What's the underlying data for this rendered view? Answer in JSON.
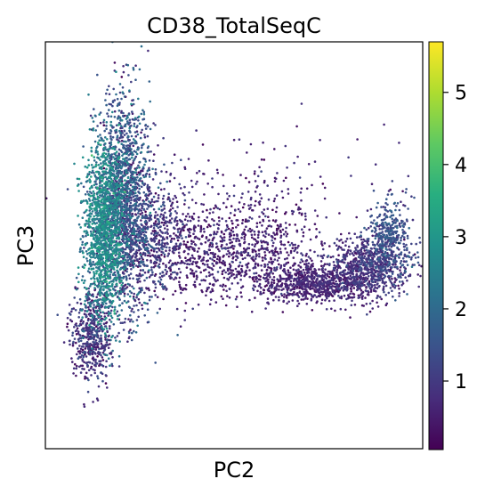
{
  "chart_data": {
    "type": "scatter",
    "title": "CD38_TotalSeqC",
    "xlabel": "PC2",
    "ylabel": "PC3",
    "x_ticks_shown": false,
    "y_ticks_shown": false,
    "grid": false,
    "colormap": "viridis",
    "colorbar": {
      "placement": "right",
      "range": [
        0.05,
        5.7
      ],
      "ticks": [
        {
          "value": 1,
          "label": "1"
        },
        {
          "value": 2,
          "label": "2"
        },
        {
          "value": 3,
          "label": "3"
        },
        {
          "value": 4,
          "label": "4"
        },
        {
          "value": 5,
          "label": "5"
        }
      ]
    },
    "xlim": [
      -10,
      105
    ],
    "ylim": [
      -28,
      80
    ],
    "clusters": [
      {
        "cx": 8,
        "cy": 30,
        "sx": 3.2,
        "sy": 12,
        "n": 1400,
        "cmean": 2.5,
        "csd": 0.45
      },
      {
        "cx": 14,
        "cy": 38,
        "sx": 4.0,
        "sy": 14,
        "n": 1500,
        "cmean": 1.4,
        "csd": 0.55
      },
      {
        "cx": 22,
        "cy": 28,
        "sx": 5.5,
        "sy": 8,
        "n": 500,
        "cmean": 1.0,
        "csd": 0.4
      },
      {
        "cx": 4,
        "cy": 2,
        "sx": 3.0,
        "sy": 6,
        "n": 500,
        "cmean": 0.8,
        "csd": 0.4
      },
      {
        "cx": 45,
        "cy": 24,
        "sx": 14,
        "sy": 6,
        "n": 900,
        "cmean": 0.55,
        "csd": 0.25
      },
      {
        "cx": 72,
        "cy": 16,
        "sx": 8,
        "sy": 2.5,
        "n": 700,
        "cmean": 0.55,
        "csd": 0.2
      },
      {
        "cx": 88,
        "cy": 20,
        "sx": 6,
        "sy": 4,
        "n": 700,
        "cmean": 0.8,
        "csd": 0.3
      },
      {
        "cx": 95,
        "cy": 28,
        "sx": 3.5,
        "sy": 5,
        "n": 400,
        "cmean": 1.4,
        "csd": 0.3
      },
      {
        "cx": 50,
        "cy": 38,
        "sx": 20,
        "sy": 9,
        "n": 250,
        "cmean": 0.6,
        "csd": 0.3
      }
    ]
  }
}
